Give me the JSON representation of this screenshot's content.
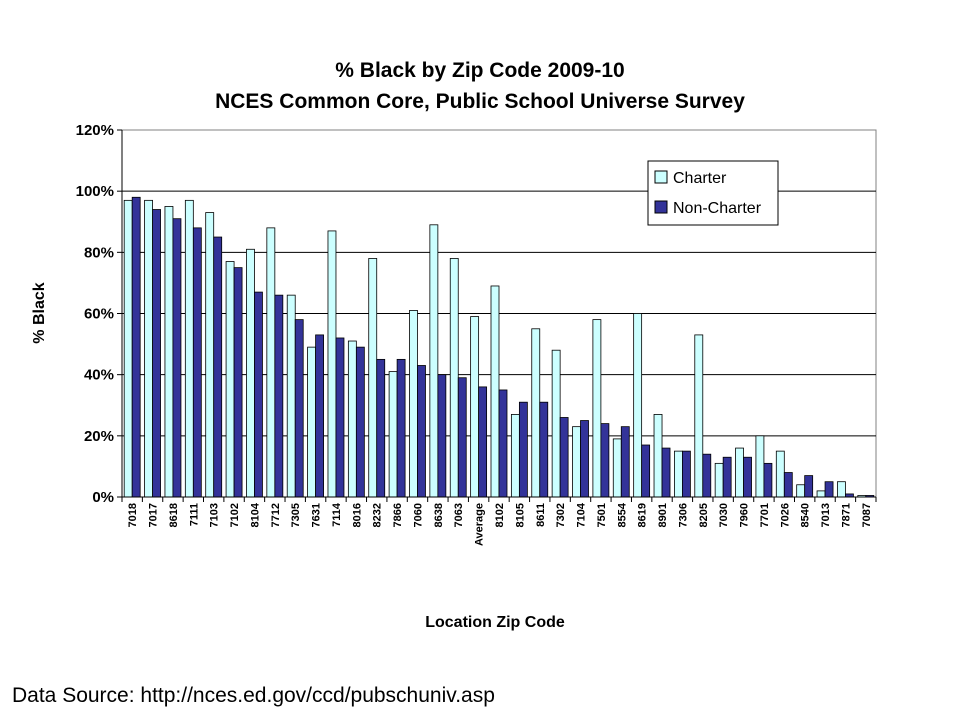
{
  "chart_data": {
    "type": "bar",
    "title": "% Black by Zip Code 2009-10",
    "subtitle": "NCES Common Core, Public School Universe Survey",
    "xlabel": "Location Zip Code",
    "ylabel": "% Black",
    "ylim": [
      0,
      120
    ],
    "yticks": [
      0,
      20,
      40,
      60,
      80,
      100,
      120
    ],
    "ytick_labels": [
      "0%",
      "20%",
      "40%",
      "60%",
      "80%",
      "100%",
      "120%"
    ],
    "grid": true,
    "legend_position": "top-right",
    "categories": [
      "7018",
      "7017",
      "8618",
      "7111",
      "7103",
      "7102",
      "8104",
      "7712",
      "7305",
      "7631",
      "7114",
      "8016",
      "8232",
      "7866",
      "7060",
      "8638",
      "7063",
      "Average",
      "8102",
      "8105",
      "8611",
      "7302",
      "7104",
      "7501",
      "8554",
      "8619",
      "8901",
      "7306",
      "8205",
      "7030",
      "7960",
      "7701",
      "7026",
      "8540",
      "7013",
      "7871",
      "7087"
    ],
    "series": [
      {
        "name": "Charter",
        "color": "#ccffff",
        "values": [
          97,
          97,
          95,
          97,
          93,
          77,
          81,
          88,
          66,
          49,
          87,
          51,
          78,
          41,
          61,
          89,
          78,
          59,
          69,
          27,
          55,
          48,
          23,
          58,
          19,
          60,
          27,
          15,
          53,
          11,
          16,
          20,
          15,
          4,
          2,
          5,
          0.5
        ]
      },
      {
        "name": "Non-Charter",
        "color": "#333399",
        "values": [
          98,
          94,
          91,
          88,
          85,
          75,
          67,
          66,
          58,
          53,
          52,
          49,
          45,
          45,
          43,
          40,
          39,
          36,
          35,
          31,
          31,
          26,
          25,
          24,
          23,
          17,
          16,
          15,
          14,
          13,
          13,
          11,
          8,
          7,
          5,
          1,
          0.5
        ]
      }
    ]
  },
  "footer": {
    "source": "Data Source: http://nces.ed.gov/ccd/pubschuniv.asp"
  }
}
